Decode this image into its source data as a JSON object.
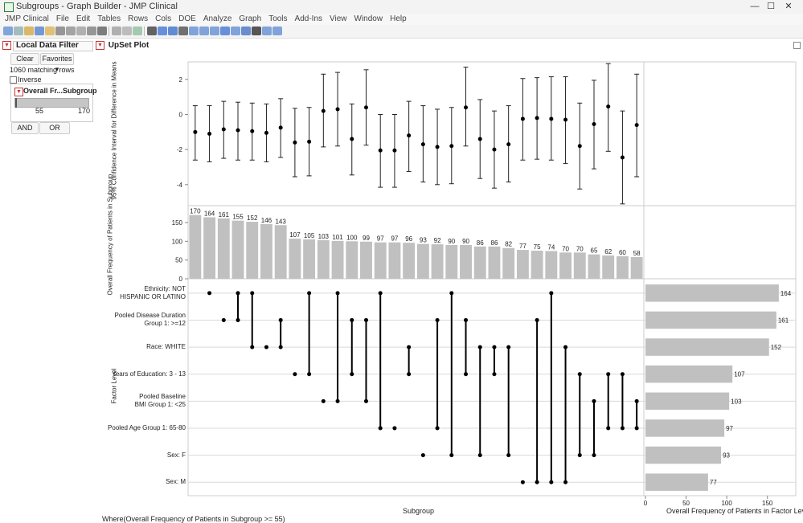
{
  "window": {
    "title": "Subgroups - Graph Builder - JMP Clinical",
    "minimize_glyph": "—",
    "maximize_glyph": "☐",
    "close_glyph": "✕"
  },
  "menu": [
    "JMP Clinical",
    "File",
    "Edit",
    "Tables",
    "Rows",
    "Cols",
    "DOE",
    "Analyze",
    "Graph",
    "Tools",
    "Add-Ins",
    "View",
    "Window",
    "Help"
  ],
  "toolbar_icons": [
    "new-data-table-icon",
    "new-script-icon",
    "open-icon",
    "save-icon",
    "folder-icon",
    "cut-icon",
    "copy-icon",
    "paste-icon",
    "lock-icon",
    "search-icon",
    "window-list-icon",
    "journal-icon",
    "layout-icon",
    "arrow-tool-icon",
    "help-tool-icon",
    "crosshair-tool-icon",
    "hand-tool-icon",
    "brush-tool-icon",
    "lasso-tool-icon",
    "zoom-tool-icon",
    "crosshair2-tool-icon",
    "line-tool-icon",
    "annotate-tool-icon",
    "simple-shape-icon",
    "polygon-icon",
    "ellipse-icon"
  ],
  "local_data_filter": {
    "title": "Local Data Filter",
    "clear_label": "Clear",
    "favorites_label": "Favorites ▾",
    "matching_rows": "1060 matching rows",
    "inverse_label": "Inverse",
    "inverse_checked": false,
    "filter": {
      "column": "Overall Fr...Subgroup",
      "min": "55",
      "max": "170",
      "range_fraction": [
        0.0,
        1.0
      ]
    },
    "and_label": "AND",
    "or_label": "OR"
  },
  "upset": {
    "title": "UpSet Plot",
    "where_text": "Where(Overall Frequency of Patients in Subgroup >= 55)"
  },
  "colors": {
    "bar": "#c0c0c0",
    "accent_red": "#cc3333",
    "grid": "#d9d9d9",
    "dot": "#000000"
  },
  "chart_data": [
    {
      "type": "scatter",
      "ylabel": "95% Confidence Interval for Difference in Means",
      "ylim": [
        -5.2,
        3.0
      ],
      "yticks": [
        2,
        0,
        -2,
        -4
      ],
      "grid": false,
      "points": [
        {
          "mean": -1.0,
          "lo": -2.6,
          "hi": 0.5
        },
        {
          "mean": -1.1,
          "lo": -2.7,
          "hi": 0.5
        },
        {
          "mean": -0.85,
          "lo": -2.5,
          "hi": 0.75
        },
        {
          "mean": -0.9,
          "lo": -2.6,
          "hi": 0.7
        },
        {
          "mean": -0.95,
          "lo": -2.6,
          "hi": 0.65
        },
        {
          "mean": -1.05,
          "lo": -2.7,
          "hi": 0.6
        },
        {
          "mean": -0.75,
          "lo": -2.45,
          "hi": 0.9
        },
        {
          "mean": -1.6,
          "lo": -3.55,
          "hi": 0.35
        },
        {
          "mean": -1.55,
          "lo": -3.5,
          "hi": 0.4
        },
        {
          "mean": 0.2,
          "lo": -1.85,
          "hi": 2.3
        },
        {
          "mean": 0.3,
          "lo": -1.8,
          "hi": 2.4
        },
        {
          "mean": -1.4,
          "lo": -3.45,
          "hi": 0.6
        },
        {
          "mean": 0.4,
          "lo": -1.75,
          "hi": 2.55
        },
        {
          "mean": -2.05,
          "lo": -4.15,
          "hi": 0.0
        },
        {
          "mean": -2.05,
          "lo": -4.15,
          "hi": 0.0
        },
        {
          "mean": -1.2,
          "lo": -3.25,
          "hi": 0.75
        },
        {
          "mean": -1.7,
          "lo": -3.85,
          "hi": 0.5
        },
        {
          "mean": -1.85,
          "lo": -4.0,
          "hi": 0.3
        },
        {
          "mean": -1.8,
          "lo": -3.95,
          "hi": 0.4
        },
        {
          "mean": 0.4,
          "lo": -1.8,
          "hi": 2.7
        },
        {
          "mean": -1.4,
          "lo": -3.65,
          "hi": 0.85
        },
        {
          "mean": -2.0,
          "lo": -4.2,
          "hi": 0.2
        },
        {
          "mean": -1.7,
          "lo": -3.85,
          "hi": 0.5
        },
        {
          "mean": -0.25,
          "lo": -2.6,
          "hi": 2.05
        },
        {
          "mean": -0.2,
          "lo": -2.55,
          "hi": 2.1
        },
        {
          "mean": -0.25,
          "lo": -2.6,
          "hi": 2.15
        },
        {
          "mean": -0.3,
          "lo": -2.8,
          "hi": 2.15
        },
        {
          "mean": -1.8,
          "lo": -4.25,
          "hi": 0.65
        },
        {
          "mean": -0.55,
          "lo": -3.1,
          "hi": 1.95
        },
        {
          "mean": 0.45,
          "lo": -2.1,
          "hi": 2.9
        },
        {
          "mean": -2.45,
          "lo": -5.1,
          "hi": 0.2
        },
        {
          "mean": -0.6,
          "lo": -3.55,
          "hi": 2.3
        }
      ]
    },
    {
      "type": "bar",
      "ylabel": "Overall Frequency of Patients in Subgroup",
      "ylim": [
        0,
        180
      ],
      "yticks": [
        150,
        100,
        50,
        0
      ],
      "values": [
        170,
        164,
        161,
        155,
        152,
        146,
        143,
        107,
        105,
        103,
        101,
        100,
        99,
        97,
        97,
        96,
        93,
        92,
        90,
        90,
        86,
        86,
        82,
        77,
        75,
        74,
        70,
        70,
        65,
        62,
        60,
        58
      ]
    },
    {
      "type": "table",
      "xlabel": "Subgroup",
      "ylabel": "Factor Level",
      "factor_levels": [
        "Ethnicity: NOT\nHISPANIC OR LATINO",
        "Pooled Disease Duration\nGroup 1: >=12",
        "Race: WHITE",
        "Years of Education: 3 - 13",
        "Pooled Baseline\nBMI Group 1: <25",
        "Pooled Age Group 1: 65-80",
        "Sex: F",
        "Sex: M"
      ],
      "membership": [
        [],
        [
          0
        ],
        [
          1
        ],
        [
          0,
          1
        ],
        [
          0,
          2
        ],
        [
          2
        ],
        [
          1,
          2
        ],
        [
          3
        ],
        [
          0,
          3
        ],
        [
          4
        ],
        [
          0,
          4
        ],
        [
          1,
          3
        ],
        [
          1,
          4
        ],
        [
          0,
          5
        ],
        [
          5
        ],
        [
          2,
          3
        ],
        [
          6
        ],
        [
          1,
          5
        ],
        [
          0,
          6
        ],
        [
          1,
          3
        ],
        [
          2,
          6
        ],
        [
          2,
          3
        ],
        [
          2,
          6
        ],
        [
          7
        ],
        [
          1,
          7
        ],
        [
          0,
          7
        ],
        [
          2,
          7
        ],
        [
          3,
          6
        ],
        [
          4,
          6
        ],
        [
          3,
          5
        ],
        [
          3,
          5
        ],
        [
          4,
          5
        ]
      ]
    },
    {
      "type": "bar",
      "orientation": "horizontal",
      "xlabel": "Overall Frequency of Patients in Factor Level",
      "xlim": [
        0,
        175
      ],
      "xticks": [
        0,
        50,
        100,
        150
      ],
      "values": [
        164,
        161,
        152,
        107,
        103,
        97,
        93,
        77
      ]
    }
  ]
}
